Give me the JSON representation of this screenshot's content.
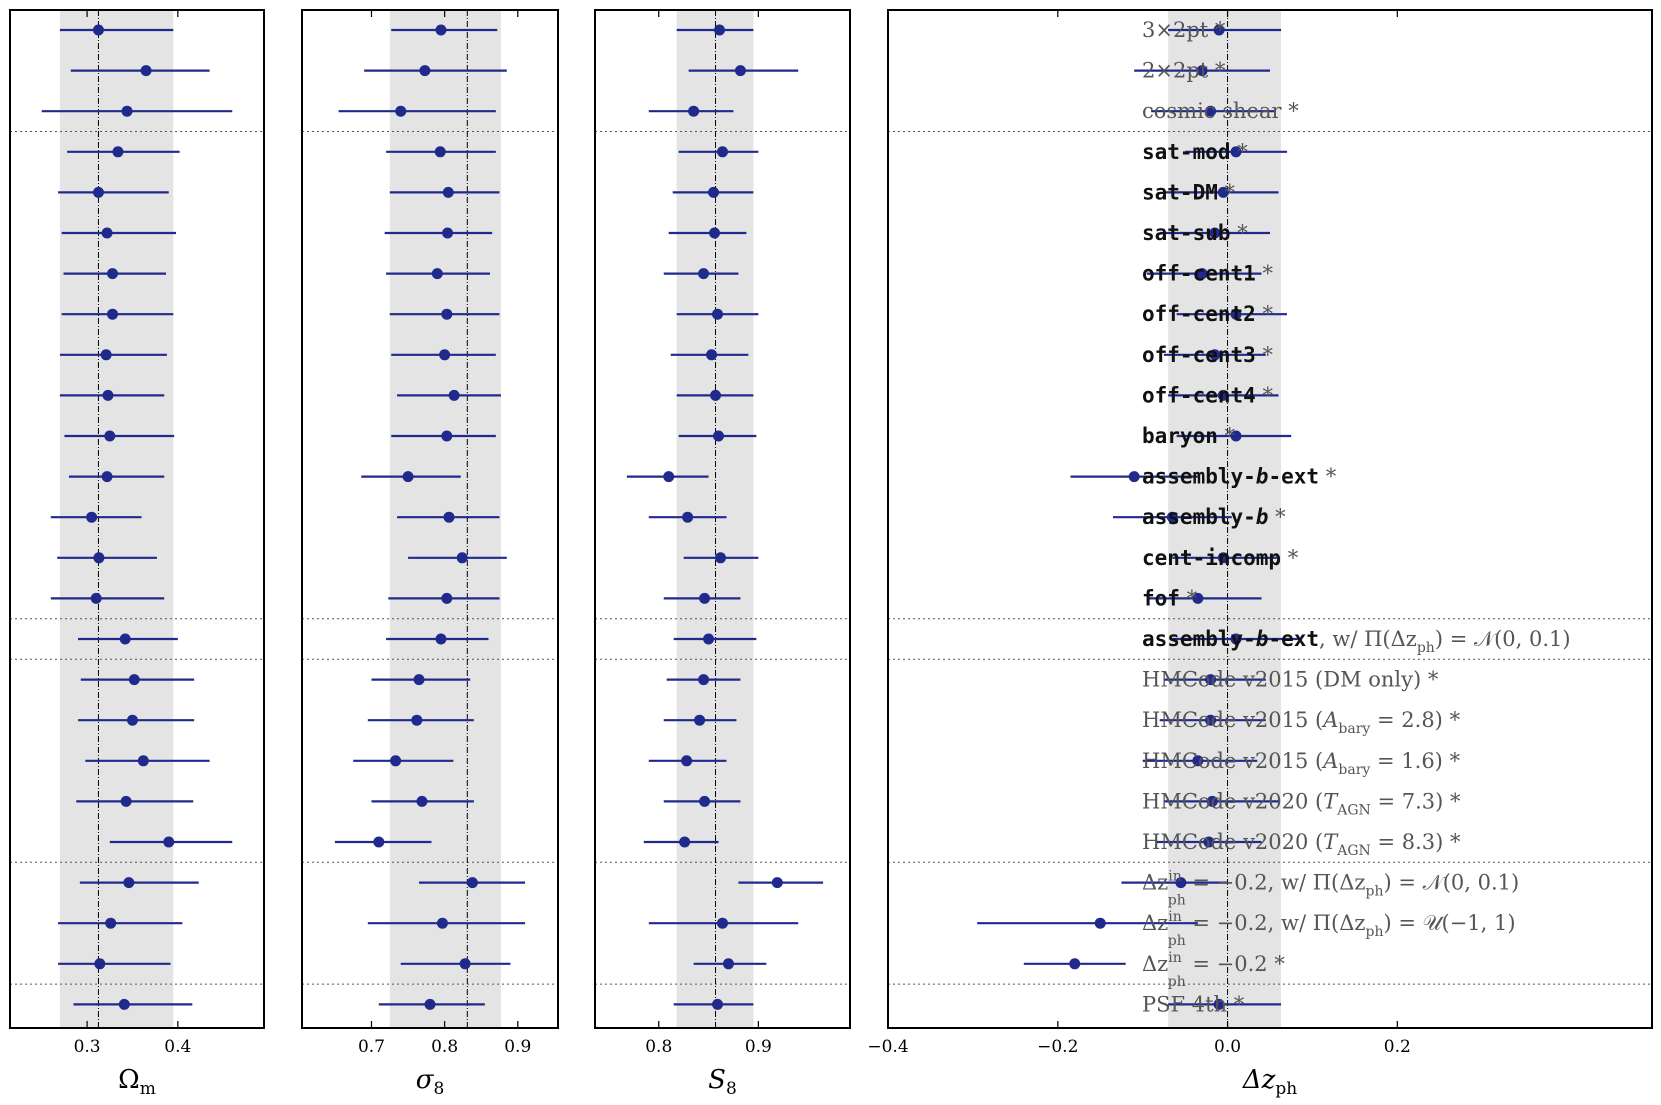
{
  "chart_data": {
    "type": "forest",
    "panels": [
      {
        "key": "om",
        "label": "Ωm",
        "xlim": [
          0.215,
          0.495
        ],
        "ticks": [
          0.3,
          0.4
        ],
        "ticklabels": [
          "0.3",
          "0.4"
        ],
        "fiducial": 0.3125,
        "band": [
          0.27,
          0.395
        ],
        "values": [
          0.3125,
          0.365,
          0.344,
          0.334,
          0.3125,
          0.322,
          0.328,
          0.328,
          0.321,
          0.323,
          0.325,
          0.322,
          0.305,
          0.313,
          0.31,
          0.342,
          0.352,
          0.35,
          0.362,
          0.343,
          0.39,
          0.346,
          0.326,
          0.314,
          0.341
        ],
        "lo": [
          0.27,
          0.282,
          0.25,
          0.278,
          0.268,
          0.272,
          0.274,
          0.272,
          0.27,
          0.27,
          0.275,
          0.28,
          0.26,
          0.267,
          0.26,
          0.29,
          0.293,
          0.29,
          0.298,
          0.288,
          0.325,
          0.292,
          0.268,
          0.268,
          0.285
        ],
        "hi": [
          0.395,
          0.435,
          0.46,
          0.402,
          0.39,
          0.398,
          0.387,
          0.395,
          0.388,
          0.385,
          0.396,
          0.385,
          0.36,
          0.377,
          0.385,
          0.4,
          0.418,
          0.418,
          0.435,
          0.417,
          0.46,
          0.423,
          0.405,
          0.392,
          0.416
        ]
      },
      {
        "key": "s8",
        "label": "σ8",
        "xlim": [
          0.605,
          0.955
        ],
        "ticks": [
          0.7,
          0.8,
          0.9
        ],
        "ticklabels": [
          "0.7",
          "0.8",
          "0.9"
        ],
        "fiducial": 0.831,
        "band": [
          0.725,
          0.877
        ],
        "values": [
          0.795,
          0.773,
          0.74,
          0.794,
          0.805,
          0.804,
          0.79,
          0.803,
          0.8,
          0.813,
          0.803,
          0.75,
          0.806,
          0.824,
          0.803,
          0.795,
          0.765,
          0.762,
          0.733,
          0.769,
          0.71,
          0.838,
          0.797,
          0.828,
          0.78
        ],
        "lo": [
          0.727,
          0.69,
          0.655,
          0.72,
          0.725,
          0.718,
          0.72,
          0.725,
          0.727,
          0.735,
          0.727,
          0.686,
          0.735,
          0.75,
          0.723,
          0.72,
          0.7,
          0.695,
          0.675,
          0.7,
          0.65,
          0.765,
          0.695,
          0.74,
          0.71
        ],
        "hi": [
          0.872,
          0.885,
          0.87,
          0.87,
          0.875,
          0.865,
          0.862,
          0.875,
          0.87,
          0.877,
          0.87,
          0.822,
          0.875,
          0.885,
          0.875,
          0.86,
          0.835,
          0.84,
          0.812,
          0.84,
          0.782,
          0.91,
          0.91,
          0.89,
          0.855
        ]
      },
      {
        "key": "S8",
        "label": "S8",
        "xlim": [
          0.736,
          0.992
        ],
        "ticks": [
          0.8,
          0.9
        ],
        "ticklabels": [
          "0.8",
          "0.9"
        ],
        "fiducial": 0.857,
        "band": [
          0.818,
          0.895
        ],
        "values": [
          0.861,
          0.882,
          0.835,
          0.864,
          0.855,
          0.856,
          0.845,
          0.859,
          0.853,
          0.857,
          0.86,
          0.81,
          0.829,
          0.862,
          0.846,
          0.85,
          0.845,
          0.841,
          0.828,
          0.846,
          0.826,
          0.919,
          0.864,
          0.87,
          0.859
        ],
        "lo": [
          0.818,
          0.83,
          0.79,
          0.82,
          0.814,
          0.81,
          0.805,
          0.818,
          0.812,
          0.818,
          0.82,
          0.768,
          0.79,
          0.825,
          0.805,
          0.815,
          0.808,
          0.805,
          0.79,
          0.805,
          0.785,
          0.88,
          0.79,
          0.835,
          0.815
        ],
        "hi": [
          0.895,
          0.94,
          0.875,
          0.9,
          0.895,
          0.888,
          0.88,
          0.9,
          0.89,
          0.895,
          0.898,
          0.85,
          0.868,
          0.9,
          0.882,
          0.898,
          0.882,
          0.878,
          0.868,
          0.882,
          0.86,
          0.965,
          0.94,
          0.908,
          0.895
        ]
      },
      {
        "key": "dz",
        "label": "Δzph",
        "xlim": [
          -0.4,
          0.5
        ],
        "ticks": [
          -0.4,
          -0.2,
          0.0,
          0.2
        ],
        "ticklabels": [
          "−0.4",
          "−0.2",
          "0.0",
          "0.2"
        ],
        "fiducial": 0.0,
        "band": [
          -0.07,
          0.063
        ],
        "values": [
          -0.01,
          -0.03,
          -0.02,
          0.01,
          -0.005,
          -0.015,
          -0.03,
          0.01,
          -0.015,
          -0.005,
          0.01,
          -0.11,
          -0.065,
          -0.005,
          -0.035,
          0.01,
          -0.02,
          -0.02,
          -0.035,
          -0.018,
          -0.022,
          -0.055,
          -0.15,
          -0.18,
          -0.01
        ],
        "lo": [
          -0.07,
          -0.11,
          -0.09,
          -0.05,
          -0.075,
          -0.08,
          -0.095,
          -0.06,
          -0.075,
          -0.07,
          -0.06,
          -0.185,
          -0.135,
          -0.065,
          -0.095,
          -0.065,
          -0.075,
          -0.08,
          -0.1,
          -0.075,
          -0.085,
          -0.125,
          -0.295,
          -0.24,
          -0.07
        ],
        "hi": [
          0.063,
          0.05,
          0.055,
          0.07,
          0.06,
          0.05,
          0.04,
          0.07,
          0.045,
          0.06,
          0.075,
          -0.035,
          0.005,
          0.058,
          0.04,
          0.085,
          0.045,
          0.045,
          0.035,
          0.06,
          0.04,
          0.0,
          -0.035,
          -0.12,
          0.063
        ]
      }
    ],
    "rows": [
      {
        "segs": [
          {
            "t": "3×2pt",
            "s": "serif"
          },
          {
            "t": " *",
            "s": "serif"
          }
        ]
      },
      {
        "segs": [
          {
            "t": "2×2pt",
            "s": "serif"
          },
          {
            "t": " *",
            "s": "serif"
          }
        ]
      },
      {
        "segs": [
          {
            "t": "cosmic shear",
            "s": "serif"
          },
          {
            "t": " *",
            "s": "serif"
          }
        ]
      },
      {
        "segs": [
          {
            "t": "sat-mod",
            "s": "mono"
          },
          {
            "t": " *",
            "s": "serif"
          }
        ]
      },
      {
        "segs": [
          {
            "t": "sat-DM",
            "s": "mono"
          },
          {
            "t": " *",
            "s": "serif"
          }
        ]
      },
      {
        "segs": [
          {
            "t": "sat-sub",
            "s": "mono"
          },
          {
            "t": " *",
            "s": "serif"
          }
        ]
      },
      {
        "segs": [
          {
            "t": "off-cent1",
            "s": "mono"
          },
          {
            "t": " *",
            "s": "serif"
          }
        ]
      },
      {
        "segs": [
          {
            "t": "off-cent2",
            "s": "mono"
          },
          {
            "t": " *",
            "s": "serif"
          }
        ]
      },
      {
        "segs": [
          {
            "t": "off-cent3",
            "s": "mono"
          },
          {
            "t": " *",
            "s": "serif"
          }
        ]
      },
      {
        "segs": [
          {
            "t": "off-cent4",
            "s": "mono"
          },
          {
            "t": " *",
            "s": "serif"
          }
        ]
      },
      {
        "segs": [
          {
            "t": "baryon",
            "s": "mono"
          },
          {
            "t": " *",
            "s": "serif"
          }
        ]
      },
      {
        "segs": [
          {
            "t": "assembly-",
            "s": "mono"
          },
          {
            "t": "b",
            "s": "mono-it"
          },
          {
            "t": "-ext",
            "s": "mono"
          },
          {
            "t": " *",
            "s": "serif"
          }
        ]
      },
      {
        "segs": [
          {
            "t": "assembly-",
            "s": "mono"
          },
          {
            "t": "b",
            "s": "mono-it"
          },
          {
            "t": " *",
            "s": "serif"
          }
        ]
      },
      {
        "segs": [
          {
            "t": "cent-incomp",
            "s": "mono"
          },
          {
            "t": " *",
            "s": "serif"
          }
        ]
      },
      {
        "segs": [
          {
            "t": "fof",
            "s": "mono"
          },
          {
            "t": " *",
            "s": "serif"
          }
        ]
      },
      {
        "segs": [
          {
            "t": "assembly-",
            "s": "mono"
          },
          {
            "t": "b",
            "s": "mono-it"
          },
          {
            "t": "-ext",
            "s": "mono"
          },
          {
            "t": ", w/ Π(Δz",
            "s": "serif"
          },
          {
            "t": "ph",
            "s": "sub"
          },
          {
            "t": ") = 𝒩(0, 0.1)",
            "s": "serif"
          }
        ]
      },
      {
        "segs": [
          {
            "t": "HMCode v2015 (DM only)",
            "s": "serif"
          },
          {
            "t": " *",
            "s": "serif"
          }
        ]
      },
      {
        "segs": [
          {
            "t": "HMCode v2015 (",
            "s": "serif"
          },
          {
            "t": "A",
            "s": "it"
          },
          {
            "t": "bary",
            "s": "sub"
          },
          {
            "t": " = 2.8)",
            "s": "serif"
          },
          {
            "t": " *",
            "s": "serif"
          }
        ]
      },
      {
        "segs": [
          {
            "t": "HMCode v2015 (",
            "s": "serif"
          },
          {
            "t": "A",
            "s": "it"
          },
          {
            "t": "bary",
            "s": "sub"
          },
          {
            "t": " = 1.6)",
            "s": "serif"
          },
          {
            "t": " *",
            "s": "serif"
          }
        ]
      },
      {
        "segs": [
          {
            "t": "HMCode v2020 (",
            "s": "serif"
          },
          {
            "t": "T",
            "s": "it"
          },
          {
            "t": "AGN",
            "s": "sub"
          },
          {
            "t": " = 7.3)",
            "s": "serif"
          },
          {
            "t": " *",
            "s": "serif"
          }
        ]
      },
      {
        "segs": [
          {
            "t": "HMCode v2020 (",
            "s": "serif"
          },
          {
            "t": "T",
            "s": "it"
          },
          {
            "t": "AGN",
            "s": "sub"
          },
          {
            "t": " = 8.3)",
            "s": "serif"
          },
          {
            "t": " *",
            "s": "serif"
          }
        ]
      },
      {
        "segs": [
          {
            "t": "Δz",
            "s": "serif"
          },
          {
            "t": "in",
            "s": "sup"
          },
          {
            "t": "ph",
            "s": "sub2"
          },
          {
            "t": " = −0.2, w/ Π(Δz",
            "s": "serif"
          },
          {
            "t": "ph",
            "s": "sub"
          },
          {
            "t": ") = 𝒩(0, 0.1)",
            "s": "serif"
          }
        ]
      },
      {
        "segs": [
          {
            "t": "Δz",
            "s": "serif"
          },
          {
            "t": "in",
            "s": "sup"
          },
          {
            "t": "ph",
            "s": "sub2"
          },
          {
            "t": " = −0.2, w/ Π(Δz",
            "s": "serif"
          },
          {
            "t": "ph",
            "s": "sub"
          },
          {
            "t": ") = 𝒰(−1, 1)",
            "s": "serif"
          }
        ]
      },
      {
        "segs": [
          {
            "t": "Δz",
            "s": "serif"
          },
          {
            "t": "in",
            "s": "sup"
          },
          {
            "t": "ph",
            "s": "sub2"
          },
          {
            "t": " = −0.2",
            "s": "serif"
          },
          {
            "t": " *",
            "s": "serif"
          }
        ]
      },
      {
        "segs": [
          {
            "t": "PSF 4th",
            "s": "serif"
          },
          {
            "t": " *",
            "s": "serif"
          }
        ]
      }
    ],
    "separators_after_row": [
      2,
      14,
      15,
      20,
      23
    ],
    "colors": {
      "points": "#1f2a8c",
      "band": "#d9d9d9"
    }
  }
}
